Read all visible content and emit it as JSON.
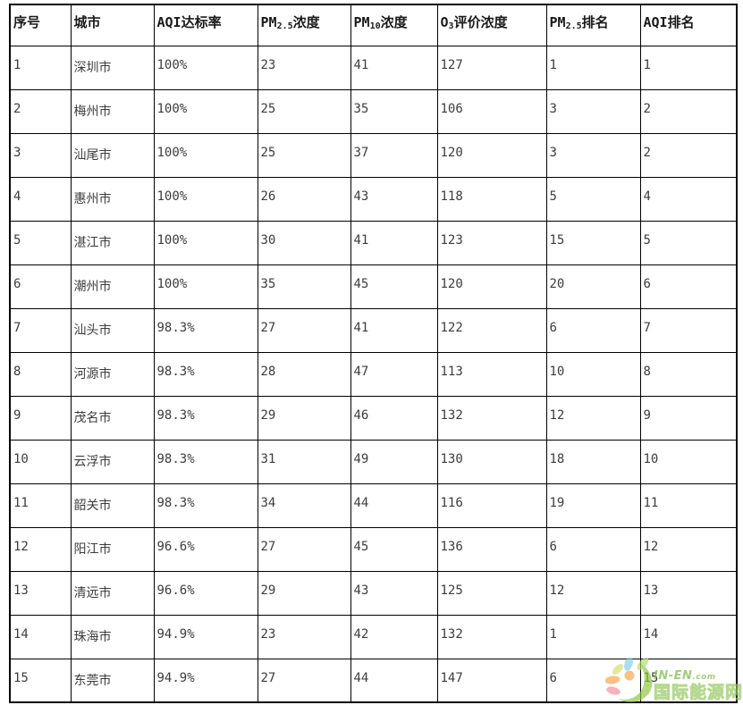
{
  "chart_data": {
    "type": "table",
    "columns": [
      {
        "id": "index",
        "label": "序号",
        "parts": [
          {
            "t": "序号"
          }
        ]
      },
      {
        "id": "city",
        "label": "城市",
        "parts": [
          {
            "t": "城市"
          }
        ]
      },
      {
        "id": "aqi_rate",
        "label": "AQI达标率",
        "parts": [
          {
            "t": "AQI达标率"
          }
        ]
      },
      {
        "id": "pm25",
        "label": "PM2.5浓度",
        "parts": [
          {
            "t": "PM"
          },
          {
            "t": "2.5",
            "sub": true
          },
          {
            "t": "浓度"
          }
        ]
      },
      {
        "id": "pm10",
        "label": "PM10浓度",
        "parts": [
          {
            "t": "PM"
          },
          {
            "t": "10",
            "sub": true
          },
          {
            "t": "浓度"
          }
        ]
      },
      {
        "id": "o3",
        "label": "O3评价浓度",
        "parts": [
          {
            "t": "O"
          },
          {
            "t": "3",
            "sub": true
          },
          {
            "t": "评价浓度"
          }
        ]
      },
      {
        "id": "pm25_rank",
        "label": "PM2.5排名",
        "parts": [
          {
            "t": "PM"
          },
          {
            "t": "2.5",
            "sub": true
          },
          {
            "t": "排名"
          }
        ]
      },
      {
        "id": "aqi_rank",
        "label": "AQI排名",
        "parts": [
          {
            "t": "AQI排名"
          }
        ]
      }
    ],
    "rows": [
      [
        "1",
        "深圳市",
        "100%",
        "23",
        "41",
        "127",
        "1",
        "1"
      ],
      [
        "2",
        "梅州市",
        "100%",
        "25",
        "35",
        "106",
        "3",
        "2"
      ],
      [
        "3",
        "汕尾市",
        "100%",
        "25",
        "37",
        "120",
        "3",
        "2"
      ],
      [
        "4",
        "惠州市",
        "100%",
        "26",
        "43",
        "118",
        "5",
        "4"
      ],
      [
        "5",
        "湛江市",
        "100%",
        "30",
        "41",
        "123",
        "15",
        "5"
      ],
      [
        "6",
        "潮州市",
        "100%",
        "35",
        "45",
        "120",
        "20",
        "6"
      ],
      [
        "7",
        "汕头市",
        "98.3%",
        "27",
        "41",
        "122",
        "6",
        "7"
      ],
      [
        "8",
        "河源市",
        "98.3%",
        "28",
        "47",
        "113",
        "10",
        "8"
      ],
      [
        "9",
        "茂名市",
        "98.3%",
        "29",
        "46",
        "132",
        "12",
        "9"
      ],
      [
        "10",
        "云浮市",
        "98.3%",
        "31",
        "49",
        "130",
        "18",
        "10"
      ],
      [
        "11",
        "韶关市",
        "98.3%",
        "34",
        "44",
        "116",
        "19",
        "11"
      ],
      [
        "12",
        "阳江市",
        "96.6%",
        "27",
        "45",
        "136",
        "6",
        "12"
      ],
      [
        "13",
        "清远市",
        "96.6%",
        "29",
        "43",
        "125",
        "12",
        "13"
      ],
      [
        "14",
        "珠海市",
        "94.9%",
        "23",
        "42",
        "132",
        "1",
        "14"
      ],
      [
        "15",
        "东莞市",
        "94.9%",
        "27",
        "44",
        "147",
        "6",
        "15"
      ]
    ]
  },
  "watermark": {
    "site": "IN-EN",
    "domain_suffix": ".com",
    "name": "国际能源网",
    "colors": {
      "green": "#8dc63f",
      "light_green": "#b2dd73",
      "yellow_green": "#d3e06e",
      "blue": "#7fd0ee",
      "orange": "#f7a64b",
      "pink": "#ef8f9f"
    }
  }
}
